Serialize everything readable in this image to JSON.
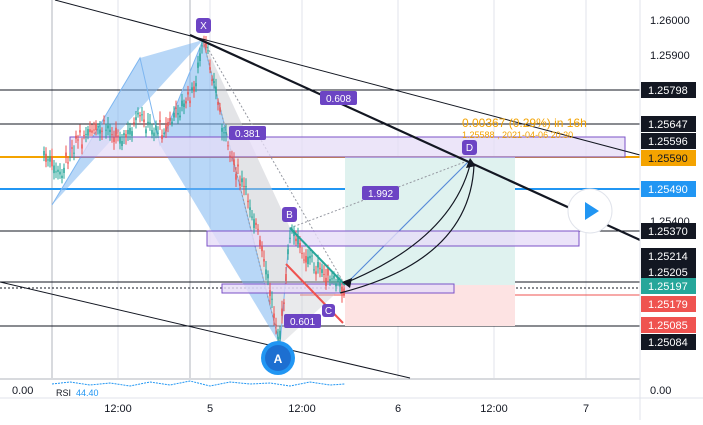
{
  "colors": {
    "background": "#ffffff",
    "grid": "#e0e3eb",
    "candle_up": "#26a69a",
    "candle_down": "#ef5350",
    "pattern_fill": "#7eb6f0",
    "pattern_zigzag": "#9598a1",
    "zone_fill": "#e6dcf7",
    "zone_stroke": "#7b52c7",
    "target_fill": "#dff2ef",
    "stop_fill": "#fde3e3",
    "tag_black": "#131722",
    "tag_orange": "#f4a300",
    "tag_blue": "#2196f3",
    "tag_red": "#ef5350",
    "label_purple": "#6c44c4"
  },
  "price_axis": {
    "ticks": [
      "1.26000",
      "1.25900",
      "1.25400",
      "1.25084"
    ],
    "bottom_ticks": [
      "0.00",
      "0.00"
    ]
  },
  "price_tags": [
    {
      "value": "1.25798",
      "style": "black"
    },
    {
      "value": "1.25647",
      "style": "black"
    },
    {
      "value": "1.25596",
      "style": "black"
    },
    {
      "value": "1.25590",
      "style": "orange"
    },
    {
      "value": "1.25490",
      "style": "blue"
    },
    {
      "value": "1.25370",
      "style": "black"
    },
    {
      "value": "1.25214",
      "style": "black"
    },
    {
      "value": "1.25205",
      "style": "black"
    },
    {
      "value": "1.25197",
      "style": "teal"
    },
    {
      "value": "1.25179",
      "style": "red"
    },
    {
      "value": "1.25085",
      "style": "red"
    },
    {
      "value": "1.25084",
      "style": "black"
    }
  ],
  "time_axis": {
    "labels": [
      "12:00",
      "5",
      "12:00",
      "6",
      "12:00",
      "7"
    ]
  },
  "pattern_points": {
    "x": "X",
    "b": "B",
    "c": "C",
    "d": "D",
    "a": "A"
  },
  "ratios": {
    "r1": "0.608",
    "r2": "0.381",
    "r3": "1.992",
    "r4": "0.601"
  },
  "measure": {
    "headline": "0.00367 (0.29%) in 16h",
    "subline": "1.25588 , 2021-04-06 20:30"
  },
  "indicator": {
    "label": "RSI",
    "value": "44.40"
  },
  "play_icon": "play-icon"
}
